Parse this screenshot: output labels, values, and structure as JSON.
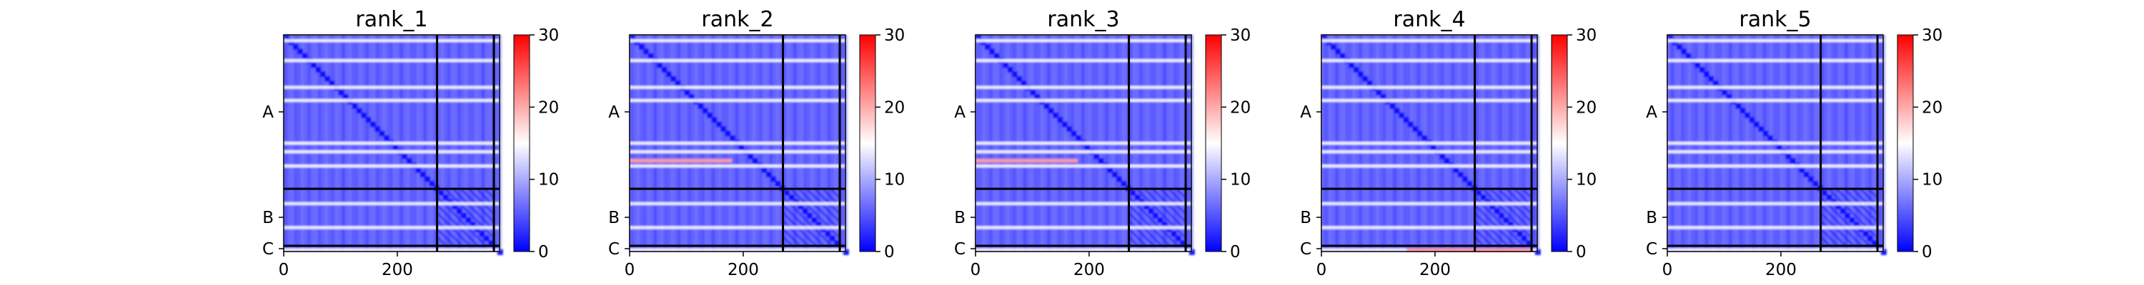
{
  "figure": {
    "colormap": {
      "low": "#0000ff",
      "mid": "#ffffff",
      "high": "#ff0000"
    }
  },
  "chart_data": [
    {
      "type": "heatmap",
      "title": "rank_1",
      "xlim": [
        0,
        380
      ],
      "ylim": [
        380,
        0
      ],
      "xticks": [
        "0",
        "200"
      ],
      "xtick_values": [
        0,
        200
      ],
      "chain_labels": [
        "A",
        "B",
        "C"
      ],
      "chain_ranges": [
        [
          0,
          270
        ],
        [
          270,
          370
        ],
        [
          370,
          380
        ]
      ],
      "chain_boundaries": [
        270,
        370
      ],
      "colorbar": {
        "min": 0,
        "max": 30,
        "ticks": [
          "0",
          "10",
          "20",
          "30"
        ]
      },
      "value_min": 0,
      "value_max": 30,
      "bright_rows": [
        10,
        45,
        92,
        115,
        190,
        205,
        230,
        296,
        338,
        377
      ],
      "orange_segments": []
    },
    {
      "type": "heatmap",
      "title": "rank_2",
      "xlim": [
        0,
        380
      ],
      "ylim": [
        380,
        0
      ],
      "xticks": [
        "0",
        "200"
      ],
      "xtick_values": [
        0,
        200
      ],
      "chain_labels": [
        "A",
        "B",
        "C"
      ],
      "chain_ranges": [
        [
          0,
          270
        ],
        [
          270,
          370
        ],
        [
          370,
          380
        ]
      ],
      "chain_boundaries": [
        270,
        370
      ],
      "colorbar": {
        "min": 0,
        "max": 30,
        "ticks": [
          "0",
          "10",
          "20",
          "30"
        ]
      },
      "value_min": 0,
      "value_max": 30,
      "bright_rows": [
        10,
        45,
        92,
        115,
        190,
        205,
        230,
        296,
        338,
        377
      ],
      "orange_segments": [
        [
          220,
          0,
          180
        ]
      ]
    },
    {
      "type": "heatmap",
      "title": "rank_3",
      "xlim": [
        0,
        380
      ],
      "ylim": [
        380,
        0
      ],
      "xticks": [
        "0",
        "200"
      ],
      "xtick_values": [
        0,
        200
      ],
      "chain_labels": [
        "A",
        "B",
        "C"
      ],
      "chain_ranges": [
        [
          0,
          270
        ],
        [
          270,
          370
        ],
        [
          370,
          380
        ]
      ],
      "chain_boundaries": [
        270,
        370
      ],
      "colorbar": {
        "min": 0,
        "max": 30,
        "ticks": [
          "0",
          "10",
          "20",
          "30"
        ]
      },
      "value_min": 0,
      "value_max": 30,
      "bright_rows": [
        10,
        45,
        92,
        115,
        190,
        205,
        230,
        296,
        338,
        377
      ],
      "orange_segments": [
        [
          220,
          0,
          180
        ]
      ]
    },
    {
      "type": "heatmap",
      "title": "rank_4",
      "xlim": [
        0,
        380
      ],
      "ylim": [
        380,
        0
      ],
      "xticks": [
        "0",
        "200"
      ],
      "xtick_values": [
        0,
        200
      ],
      "chain_labels": [
        "A",
        "B",
        "C"
      ],
      "chain_ranges": [
        [
          0,
          270
        ],
        [
          270,
          370
        ],
        [
          370,
          380
        ]
      ],
      "chain_boundaries": [
        270,
        370
      ],
      "colorbar": {
        "min": 0,
        "max": 30,
        "ticks": [
          "0",
          "10",
          "20",
          "30"
        ]
      },
      "value_min": 0,
      "value_max": 30,
      "bright_rows": [
        10,
        45,
        92,
        115,
        190,
        205,
        230,
        296,
        338,
        377
      ],
      "orange_segments": [
        [
          377,
          150,
          370
        ]
      ]
    },
    {
      "type": "heatmap",
      "title": "rank_5",
      "xlim": [
        0,
        380
      ],
      "ylim": [
        380,
        0
      ],
      "xticks": [
        "0",
        "200"
      ],
      "xtick_values": [
        0,
        200
      ],
      "chain_labels": [
        "A",
        "B",
        "C"
      ],
      "chain_ranges": [
        [
          0,
          270
        ],
        [
          270,
          370
        ],
        [
          370,
          380
        ]
      ],
      "chain_boundaries": [
        270,
        370
      ],
      "colorbar": {
        "min": 0,
        "max": 30,
        "ticks": [
          "0",
          "10",
          "20",
          "30"
        ]
      },
      "value_min": 0,
      "value_max": 30,
      "bright_rows": [
        10,
        45,
        92,
        115,
        190,
        205,
        230,
        296,
        338,
        377
      ],
      "orange_segments": []
    }
  ]
}
